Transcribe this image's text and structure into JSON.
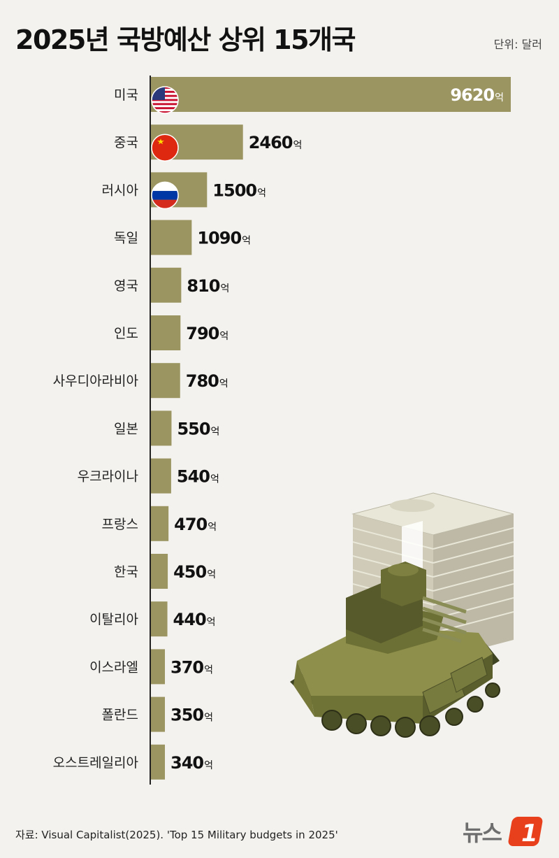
{
  "header": {
    "title": "2025년 국방예산 상위 15개국",
    "unit": "단위: 달러"
  },
  "footer": {
    "source": "자료:  Visual Capitalist(2025). 'Top 15 Military budgets in 2025'",
    "logo_text": "뉴스1"
  },
  "colors": {
    "bar": "#9b9562",
    "axis": "#222222",
    "background": "#f3f2ee",
    "logo_red": "#e8401c"
  },
  "chart_data": {
    "type": "bar",
    "orientation": "horizontal",
    "title": "2025년 국방예산 상위 15개국",
    "unit": "단위: 달러",
    "value_suffix": "억",
    "categories": [
      "미국",
      "중국",
      "러시아",
      "독일",
      "영국",
      "인도",
      "사우디아라비아",
      "일본",
      "우크라이나",
      "프랑스",
      "한국",
      "이탈리아",
      "이스라엘",
      "폴란드",
      "오스트레일리아"
    ],
    "values": [
      9620,
      2460,
      1500,
      1090,
      810,
      790,
      780,
      550,
      540,
      470,
      450,
      440,
      370,
      350,
      340
    ],
    "flags": [
      "us-flag-icon",
      "china-flag-icon",
      "russia-flag-icon",
      null,
      null,
      null,
      null,
      null,
      null,
      null,
      null,
      null,
      null,
      null,
      null
    ],
    "xlim": [
      0,
      9620
    ],
    "grid": false,
    "legend": "none"
  }
}
